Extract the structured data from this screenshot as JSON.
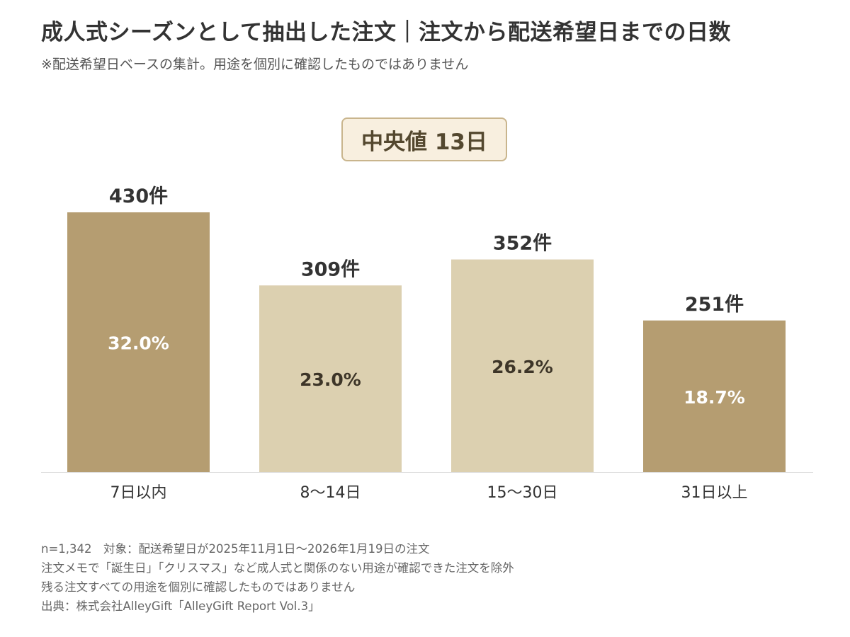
{
  "header": {
    "title": "成人式シーズンとして抽出した注文｜注文から配送希望日までの日数",
    "subtitle": "※配送希望日ベースの集計。用途を個別に確認したものではありません"
  },
  "median_badge": {
    "label": "中央値 13日"
  },
  "chart_data": {
    "type": "bar",
    "categories": [
      "7日以内",
      "8〜14日",
      "15〜30日",
      "31日以上"
    ],
    "values": [
      430,
      309,
      352,
      251
    ],
    "value_labels": [
      "430件",
      "309件",
      "352件",
      "251件"
    ],
    "percent_labels": [
      "32.0%",
      "23.0%",
      "26.2%",
      "18.7%"
    ],
    "colors": [
      "#b59d71",
      "#dcd0b0",
      "#dcd0b0",
      "#b59d71"
    ],
    "percent_label_colors": [
      "#ffffff",
      "#3d3528",
      "#3d3528",
      "#ffffff"
    ],
    "ylim": [
      0,
      430
    ],
    "grid": false,
    "xlabel": "",
    "ylabel": ""
  },
  "footnotes": [
    "n=1,342　対象：配送希望日が2025年11月1日〜2026年1月19日の注文",
    "注文メモで「誕生日」「クリスマス」など成人式と関係のない用途が確認できた注文を除外",
    "残る注文すべての用途を個別に確認したものではありません",
    "出典：株式会社AlleyGift「AlleyGift Report Vol.3」"
  ]
}
